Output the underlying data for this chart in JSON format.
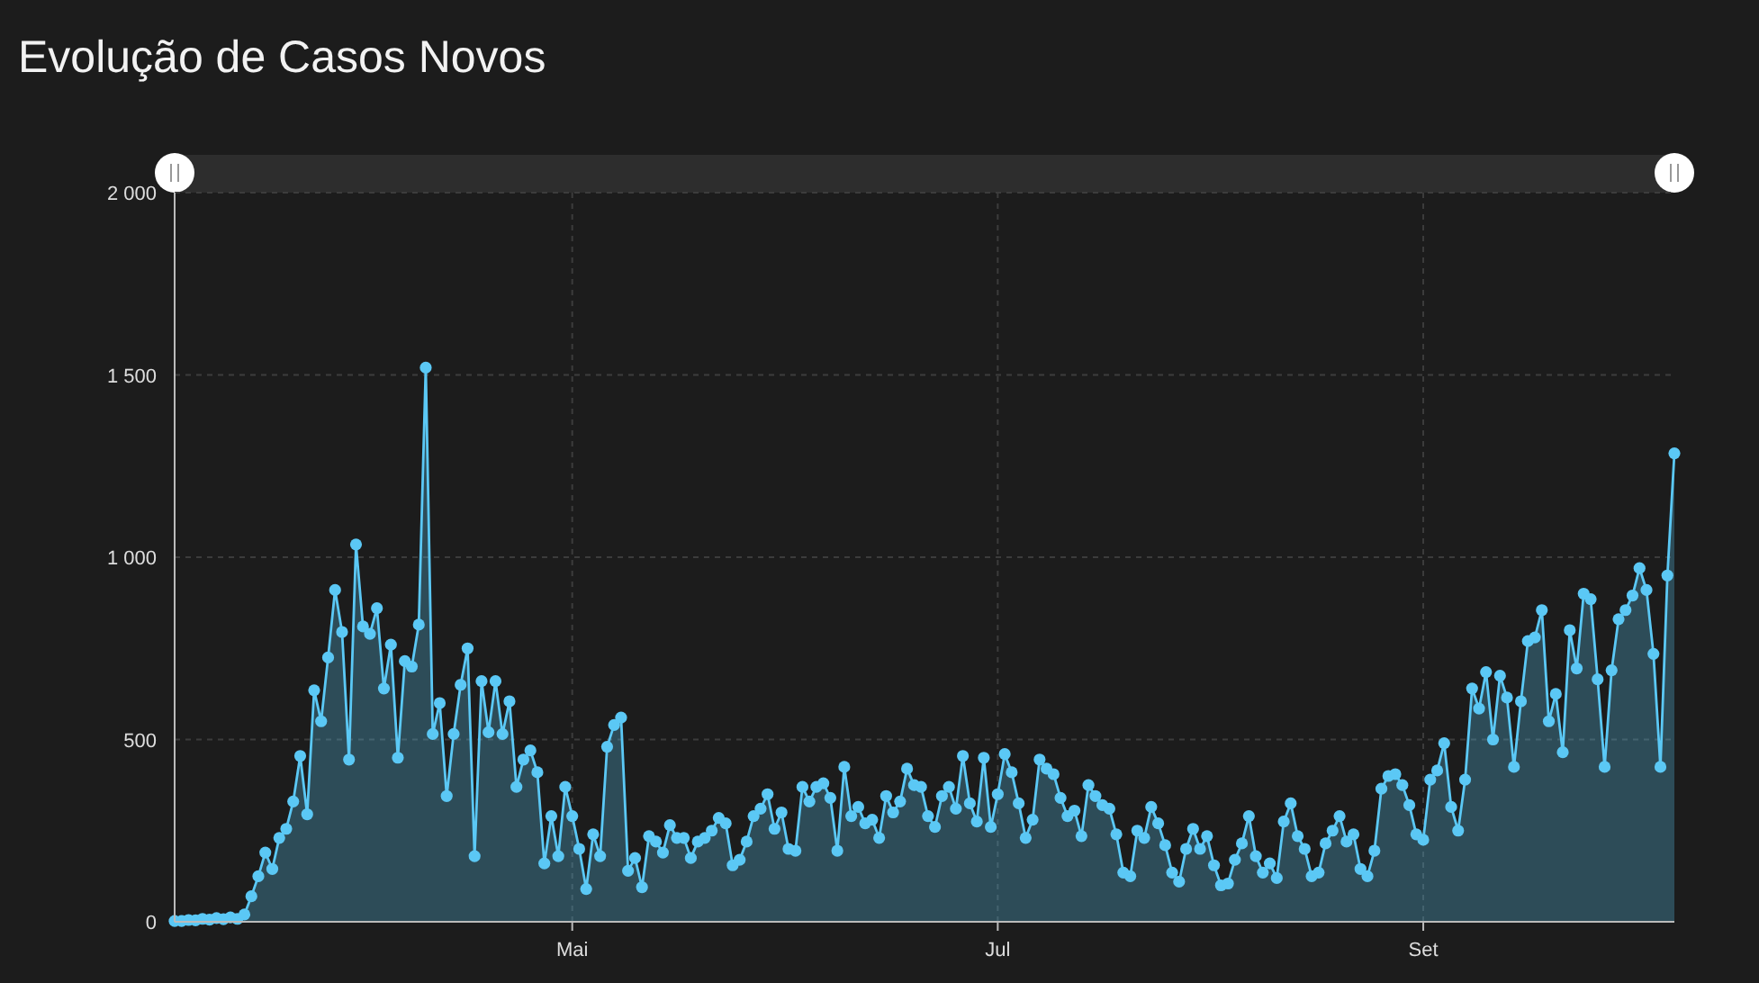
{
  "chart_data": {
    "type": "area",
    "title": "Evolução de Casos Novos",
    "color": "#5bc8f5",
    "marker": "circle",
    "grid": true,
    "ylim": [
      0,
      2000
    ],
    "yticks": [
      0,
      500,
      {
        "value": 1000,
        "label": "1 000"
      },
      {
        "value": 1500,
        "label": "1 500"
      },
      {
        "value": 2000,
        "label": "2 000"
      }
    ],
    "categories": [
      null,
      null,
      null,
      null,
      null,
      null,
      null,
      null,
      null,
      null,
      null,
      null,
      null,
      null,
      null,
      null,
      null,
      null,
      null,
      null,
      null,
      null,
      null,
      null,
      null,
      null,
      null,
      null,
      null,
      null,
      null,
      null,
      null,
      null,
      null,
      null,
      null,
      null,
      null,
      null,
      null,
      null,
      null,
      null,
      null,
      null,
      null,
      null,
      null,
      null,
      null,
      null,
      null,
      null,
      null,
      null,
      null,
      "Mai",
      null,
      null,
      null,
      null,
      null,
      null,
      null,
      null,
      null,
      null,
      null,
      null,
      null,
      null,
      null,
      null,
      null,
      null,
      null,
      null,
      null,
      null,
      null,
      null,
      null,
      null,
      null,
      null,
      null,
      null,
      null,
      null,
      null,
      null,
      null,
      null,
      null,
      null,
      null,
      null,
      null,
      null,
      null,
      null,
      null,
      null,
      null,
      null,
      null,
      null,
      null,
      null,
      null,
      null,
      null,
      null,
      null,
      null,
      null,
      null,
      "Jul",
      null,
      null,
      null,
      null,
      null,
      null,
      null,
      null,
      null,
      null,
      null,
      null,
      null,
      null,
      null,
      null,
      null,
      null,
      null,
      null,
      null,
      null,
      null,
      null,
      null,
      null,
      null,
      null,
      null,
      null,
      null,
      null,
      null,
      null,
      null,
      null,
      null,
      null,
      null,
      null,
      null,
      null,
      null,
      null,
      null,
      null,
      null,
      null,
      null,
      null,
      null,
      null,
      null,
      null,
      null,
      null,
      null,
      null,
      null,
      null,
      "Set",
      null,
      null,
      null,
      null,
      null,
      null,
      null,
      null,
      null,
      null,
      null,
      null,
      null,
      null,
      null,
      null,
      null,
      null,
      null,
      null,
      null,
      null,
      null,
      null,
      null,
      null,
      null,
      null,
      null,
      null,
      null,
      null,
      null,
      null,
      null,
      null
    ],
    "values": [
      2,
      2,
      5,
      4,
      8,
      6,
      10,
      7,
      12,
      8,
      20,
      70,
      125,
      190,
      145,
      230,
      255,
      330,
      455,
      295,
      635,
      550,
      725,
      910,
      795,
      445,
      1035,
      810,
      790,
      860,
      640,
      760,
      450,
      715,
      700,
      815,
      1520,
      515,
      600,
      345,
      515,
      650,
      750,
      180,
      660,
      520,
      660,
      515,
      605,
      370,
      445,
      470,
      410,
      160,
      290,
      180,
      370,
      290,
      200,
      90,
      240,
      180,
      480,
      540,
      560,
      140,
      175,
      95,
      235,
      220,
      190,
      265,
      230,
      230,
      175,
      220,
      230,
      250,
      285,
      270,
      155,
      170,
      220,
      290,
      310,
      350,
      255,
      300,
      200,
      195,
      370,
      330,
      370,
      380,
      340,
      195,
      425,
      290,
      315,
      270,
      280,
      230,
      345,
      300,
      330,
      420,
      375,
      370,
      290,
      260,
      345,
      370,
      310,
      455,
      325,
      275,
      450,
      260,
      350,
      460,
      410,
      325,
      230,
      280,
      445,
      420,
      405,
      340,
      290,
      305,
      235,
      375,
      345,
      320,
      310,
      240,
      135,
      125,
      250,
      230,
      315,
      270,
      210,
      135,
      110,
      200,
      255,
      200,
      235,
      155,
      100,
      105,
      170,
      215,
      290,
      180,
      135,
      160,
      120,
      275,
      325,
      235,
      200,
      125,
      135,
      215,
      250,
      290,
      220,
      240,
      145,
      125,
      195,
      365,
      400,
      405,
      375,
      320,
      240,
      225,
      390,
      415,
      490,
      315,
      250,
      390,
      640,
      585,
      685,
      500,
      675,
      615,
      425,
      605,
      770,
      780,
      855,
      550,
      625,
      465,
      800,
      695,
      900,
      885,
      665,
      425,
      690,
      830,
      855,
      895,
      970,
      910,
      735,
      425,
      950,
      1285
    ]
  }
}
